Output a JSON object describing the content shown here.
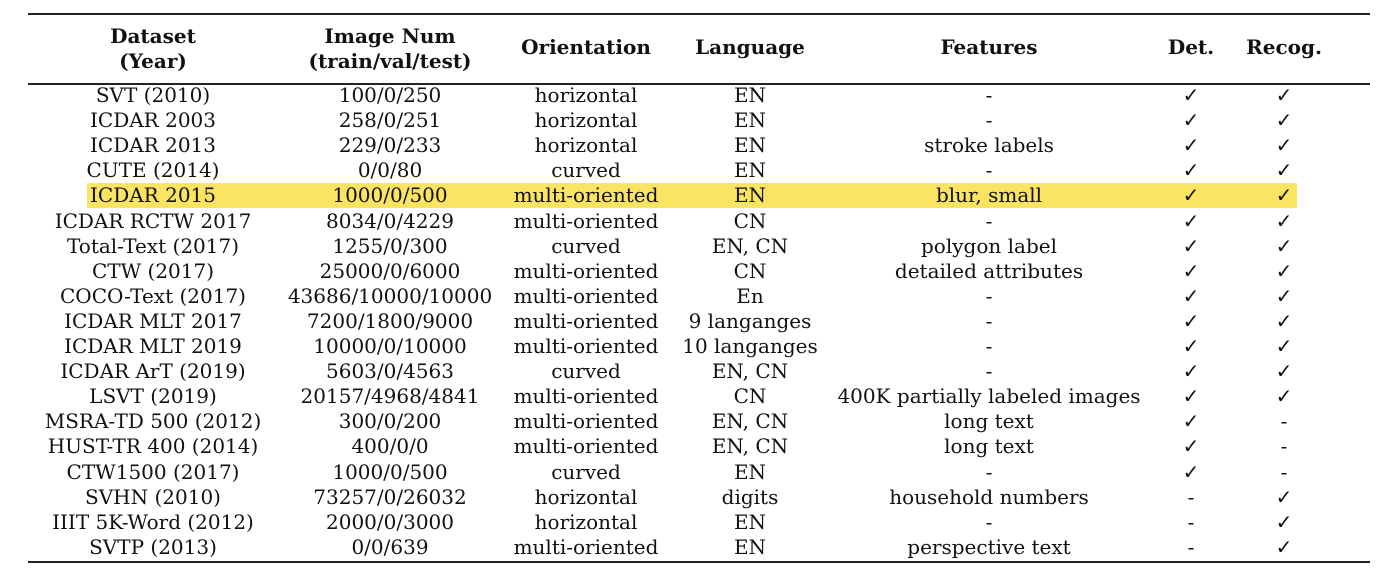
{
  "headers": {
    "dataset": [
      "Dataset",
      "(Year)"
    ],
    "images": [
      "Image Num",
      "(train/val/test)"
    ],
    "orientation": "Orientation",
    "language": "Language",
    "features": "Features",
    "det": "Det.",
    "recog": "Recog."
  },
  "highlight_color": "#fce463",
  "rows": [
    {
      "dataset": "SVT (2010)",
      "images": "100/0/250",
      "orientation": "horizontal",
      "language": "EN",
      "features": "-",
      "det": "✓",
      "recog": "✓"
    },
    {
      "dataset": "ICDAR 2003",
      "images": "258/0/251",
      "orientation": "horizontal",
      "language": "EN",
      "features": "-",
      "det": "✓",
      "recog": "✓"
    },
    {
      "dataset": "ICDAR 2013",
      "images": "229/0/233",
      "orientation": "horizontal",
      "language": "EN",
      "features": "stroke labels",
      "det": "✓",
      "recog": "✓"
    },
    {
      "dataset": "CUTE (2014)",
      "images": "0/0/80",
      "orientation": "curved",
      "language": "EN",
      "features": "-",
      "det": "✓",
      "recog": "✓"
    },
    {
      "dataset": "ICDAR 2015",
      "images": "1000/0/500",
      "orientation": "multi-oriented",
      "language": "EN",
      "features": "blur, small",
      "det": "✓",
      "recog": "✓",
      "highlighted": true
    },
    {
      "dataset": "ICDAR RCTW 2017",
      "images": "8034/0/4229",
      "orientation": "multi-oriented",
      "language": "CN",
      "features": "-",
      "det": "✓",
      "recog": "✓"
    },
    {
      "dataset": "Total-Text (2017)",
      "images": "1255/0/300",
      "orientation": "curved",
      "language": "EN, CN",
      "features": "polygon label",
      "det": "✓",
      "recog": "✓"
    },
    {
      "dataset": "CTW (2017)",
      "images": "25000/0/6000",
      "orientation": "multi-oriented",
      "language": "CN",
      "features": "detailed attributes",
      "det": "✓",
      "recog": "✓"
    },
    {
      "dataset": "COCO-Text (2017)",
      "images": "43686/10000/10000",
      "orientation": "multi-oriented",
      "language": "En",
      "features": "-",
      "det": "✓",
      "recog": "✓"
    },
    {
      "dataset": "ICDAR MLT 2017",
      "images": "7200/1800/9000",
      "orientation": "multi-oriented",
      "language": "9 langanges",
      "features": "-",
      "det": "✓",
      "recog": "✓"
    },
    {
      "dataset": "ICDAR MLT 2019",
      "images": "10000/0/10000",
      "orientation": "multi-oriented",
      "language": "10 langanges",
      "features": "-",
      "det": "✓",
      "recog": "✓"
    },
    {
      "dataset": "ICDAR ArT (2019)",
      "images": "5603/0/4563",
      "orientation": "curved",
      "language": "EN, CN",
      "features": "-",
      "det": "✓",
      "recog": "✓"
    },
    {
      "dataset": "LSVT (2019)",
      "images": "20157/4968/4841",
      "orientation": "multi-oriented",
      "language": "CN",
      "features": "400K partially labeled images",
      "det": "✓",
      "recog": "✓"
    },
    {
      "dataset": "MSRA-TD 500 (2012)",
      "images": "300/0/200",
      "orientation": "multi-oriented",
      "language": "EN, CN",
      "features": "long text",
      "det": "✓",
      "recog": "-"
    },
    {
      "dataset": "HUST-TR 400 (2014)",
      "images": "400/0/0",
      "orientation": "multi-oriented",
      "language": "EN, CN",
      "features": "long text",
      "det": "✓",
      "recog": "-"
    },
    {
      "dataset": "CTW1500 (2017)",
      "images": "1000/0/500",
      "orientation": "curved",
      "language": "EN",
      "features": "-",
      "det": "✓",
      "recog": "-"
    },
    {
      "dataset": "SVHN (2010)",
      "images": "73257/0/26032",
      "orientation": "horizontal",
      "language": "digits",
      "features": "household numbers",
      "det": "-",
      "recog": "✓"
    },
    {
      "dataset": "IIIT 5K-Word (2012)",
      "images": "2000/0/3000",
      "orientation": "horizontal",
      "language": "EN",
      "features": "-",
      "det": "-",
      "recog": "✓"
    },
    {
      "dataset": "SVTP (2013)",
      "images": "0/0/639",
      "orientation": "multi-oriented",
      "language": "EN",
      "features": "perspective text",
      "det": "-",
      "recog": "✓"
    }
  ]
}
